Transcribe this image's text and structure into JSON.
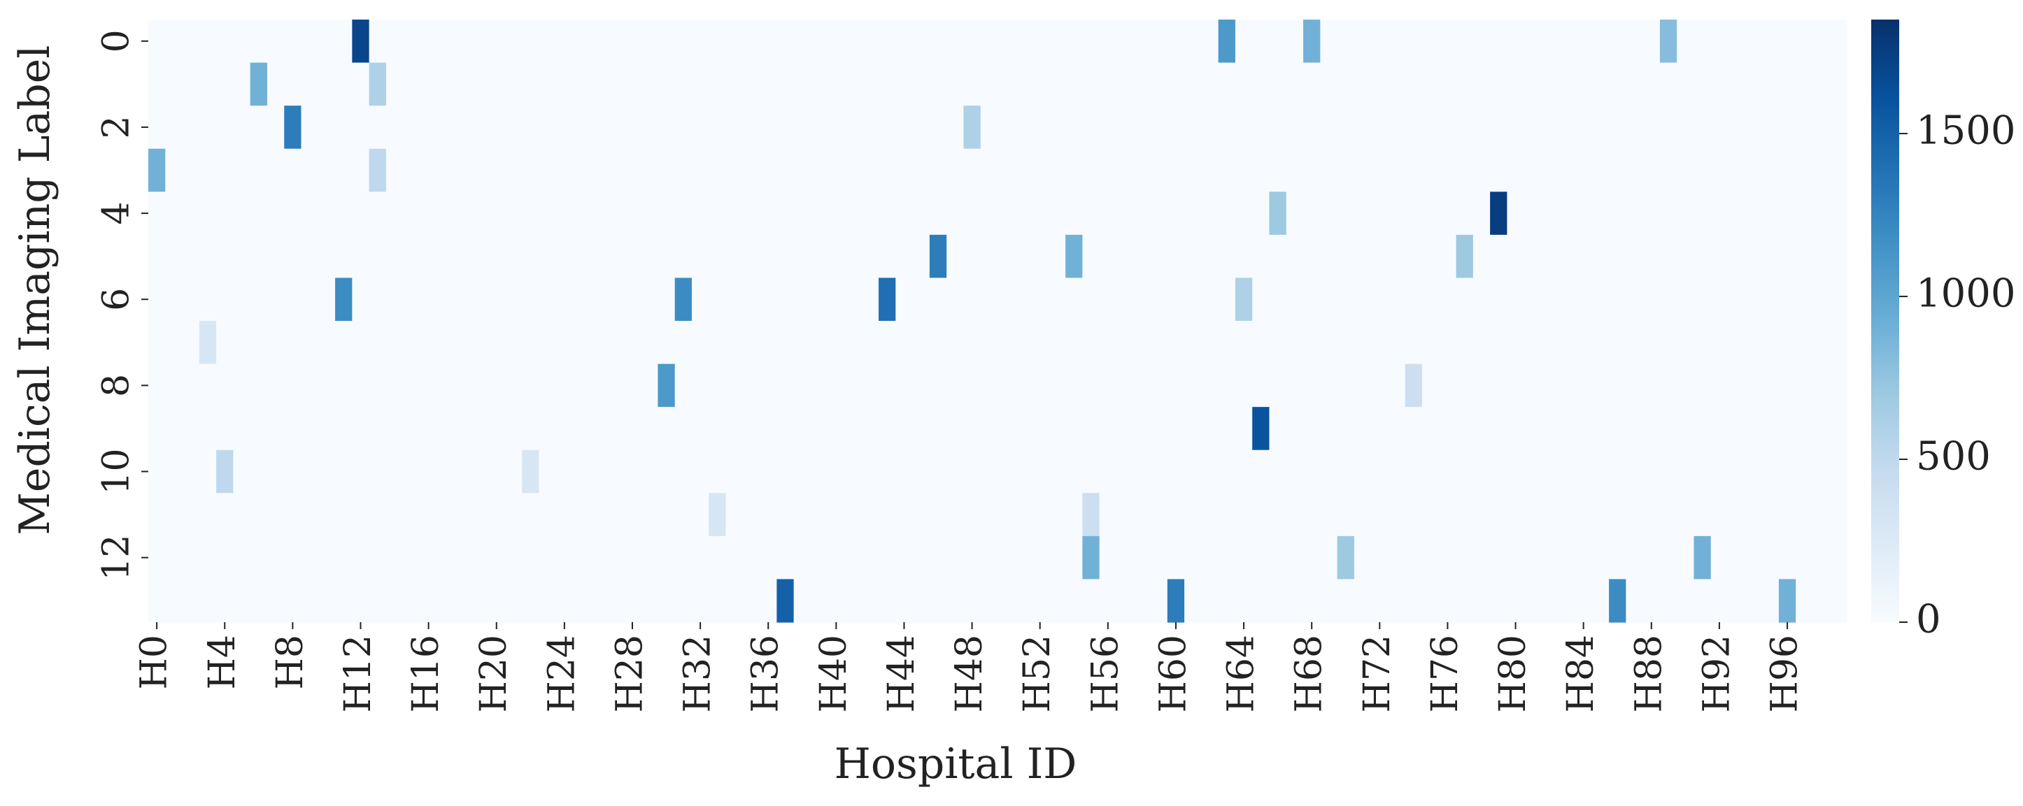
{
  "chart_data": {
    "type": "heatmap",
    "title": "",
    "xlabel": "Hospital ID",
    "ylabel": "Medical Imaging Label",
    "x_tick_labels": [
      "H0",
      "H4",
      "H8",
      "H12",
      "H16",
      "H20",
      "H24",
      "H28",
      "H32",
      "H36",
      "H40",
      "H44",
      "H48",
      "H52",
      "H56",
      "H60",
      "H64",
      "H68",
      "H72",
      "H76",
      "H80",
      "H84",
      "H88",
      "H92",
      "H96"
    ],
    "y_tick_labels": [
      "0",
      "2",
      "4",
      "6",
      "8",
      "10",
      "12"
    ],
    "colorbar": {
      "ticks": [
        "0",
        "500",
        "1000",
        "1500"
      ],
      "range": [
        0,
        1850
      ],
      "colormap": "Blues"
    },
    "rows": 14,
    "cols": 100,
    "approximate_structure": "Most cells near 0 (white); scattered cells of 200–1200 (light to mid blue); a few dark cells (~1500–1800).",
    "notable_cells": [
      {
        "row": 0,
        "col": 12,
        "value": 1700
      },
      {
        "row": 0,
        "col": 63,
        "value": 1100
      },
      {
        "row": 0,
        "col": 68,
        "value": 900
      },
      {
        "row": 0,
        "col": 89,
        "value": 800
      },
      {
        "row": 1,
        "col": 6,
        "value": 900
      },
      {
        "row": 1,
        "col": 13,
        "value": 600
      },
      {
        "row": 2,
        "col": 8,
        "value": 1300
      },
      {
        "row": 2,
        "col": 48,
        "value": 600
      },
      {
        "row": 3,
        "col": 0,
        "value": 900
      },
      {
        "row": 3,
        "col": 13,
        "value": 500
      },
      {
        "row": 4,
        "col": 66,
        "value": 700
      },
      {
        "row": 4,
        "col": 79,
        "value": 1750
      },
      {
        "row": 5,
        "col": 46,
        "value": 1300
      },
      {
        "row": 5,
        "col": 54,
        "value": 900
      },
      {
        "row": 5,
        "col": 77,
        "value": 700
      },
      {
        "row": 6,
        "col": 11,
        "value": 1200
      },
      {
        "row": 6,
        "col": 31,
        "value": 1200
      },
      {
        "row": 6,
        "col": 43,
        "value": 1400
      },
      {
        "row": 6,
        "col": 64,
        "value": 600
      },
      {
        "row": 7,
        "col": 3,
        "value": 300
      },
      {
        "row": 8,
        "col": 30,
        "value": 1100
      },
      {
        "row": 8,
        "col": 74,
        "value": 400
      },
      {
        "row": 9,
        "col": 65,
        "value": 1600
      },
      {
        "row": 10,
        "col": 4,
        "value": 500
      },
      {
        "row": 10,
        "col": 22,
        "value": 300
      },
      {
        "row": 11,
        "col": 55,
        "value": 400
      },
      {
        "row": 11,
        "col": 33,
        "value": 300
      },
      {
        "row": 12,
        "col": 55,
        "value": 900
      },
      {
        "row": 12,
        "col": 70,
        "value": 700
      },
      {
        "row": 12,
        "col": 91,
        "value": 900
      },
      {
        "row": 13,
        "col": 37,
        "value": 1500
      },
      {
        "row": 13,
        "col": 60,
        "value": 1300
      },
      {
        "row": 13,
        "col": 86,
        "value": 1200
      },
      {
        "row": 13,
        "col": 96,
        "value": 900
      }
    ]
  }
}
